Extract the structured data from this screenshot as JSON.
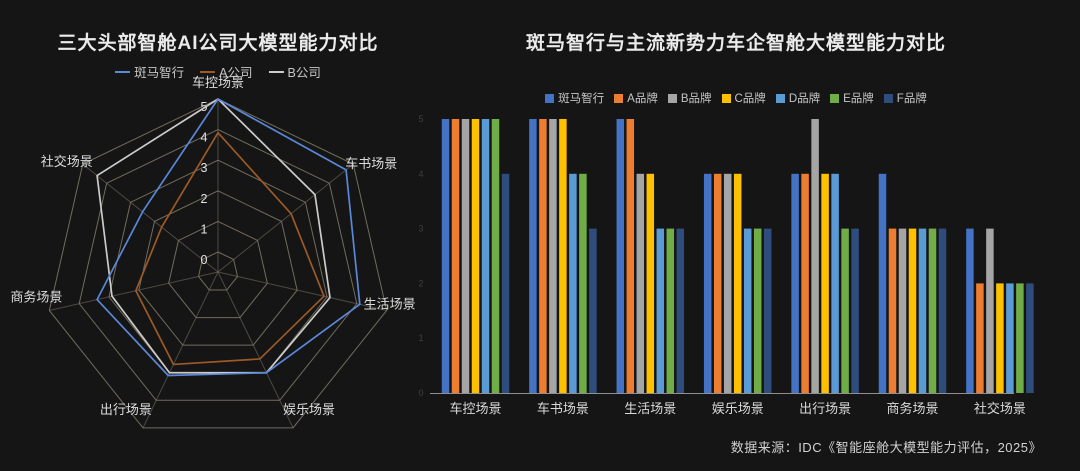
{
  "page": {
    "background_color": "#151515",
    "source_note": "数据来源：IDC《智能座舱大模型能力评估，2025》"
  },
  "chart_data": [
    {
      "type": "radar",
      "title": "三大头部智舱AI公司大模型能力对比",
      "axes": [
        "车控场景",
        "车书场景",
        "生活场景",
        "娱乐场景",
        "出行场景",
        "商务场景",
        "社交场景"
      ],
      "ring_labels": [
        "0",
        "1",
        "2",
        "3",
        "4",
        "5"
      ],
      "range": [
        0,
        5
      ],
      "grid": true,
      "grid_color": "#7c7566",
      "legend_position": "top",
      "series": [
        {
          "name": "斑马智行",
          "color": "#5b87d8",
          "values": [
            5,
            4.7,
            4.1,
            3.0,
            3.1,
            3.4,
            2.5
          ]
        },
        {
          "name": "A公司",
          "color": "#9d5a26",
          "values": [
            3.9,
            2.4,
            2.9,
            2.5,
            2.7,
            2.1,
            1.7
          ]
        },
        {
          "name": "B公司",
          "color": "#cbcbcb",
          "values": [
            5,
            3.4,
            3.1,
            3.0,
            3.0,
            2.9,
            4.4
          ]
        }
      ]
    },
    {
      "type": "bar",
      "title": "斑马智行与主流新势力车企智舱大模型能力对比",
      "categories": [
        "车控场景",
        "车书场景",
        "生活场景",
        "娱乐场景",
        "出行场景",
        "商务场景",
        "社交场景"
      ],
      "ylim": [
        0,
        5
      ],
      "y_ticks": [
        "0",
        "1",
        "2",
        "3",
        "4",
        "5"
      ],
      "grid": false,
      "legend_position": "top",
      "series": [
        {
          "name": "斑马智行",
          "color": "#4472c4",
          "values": [
            5,
            5,
            5,
            4,
            4,
            4,
            3
          ]
        },
        {
          "name": "A品牌",
          "color": "#ed7d31",
          "values": [
            5,
            5,
            5,
            4,
            4,
            3,
            2
          ]
        },
        {
          "name": "B品牌",
          "color": "#a5a5a5",
          "values": [
            5,
            5,
            4,
            4,
            5,
            3,
            3
          ]
        },
        {
          "name": "C品牌",
          "color": "#ffc000",
          "values": [
            5,
            5,
            4,
            4,
            4,
            3,
            2
          ]
        },
        {
          "name": "D品牌",
          "color": "#5b9bd5",
          "values": [
            5,
            4,
            3,
            3,
            4,
            3,
            2
          ]
        },
        {
          "name": "E品牌",
          "color": "#70ad47",
          "values": [
            5,
            4,
            3,
            3,
            3,
            3,
            2
          ]
        },
        {
          "name": "F品牌",
          "color": "#2e4d7d",
          "values": [
            4,
            3,
            3,
            3,
            3,
            3,
            2
          ]
        }
      ]
    }
  ]
}
